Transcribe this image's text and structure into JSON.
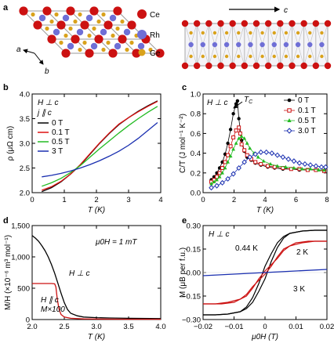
{
  "panel_labels": {
    "a": "a",
    "b": "b",
    "c": "c",
    "d": "d",
    "e": "e"
  },
  "panel_a": {
    "atoms": [
      {
        "name": "Ce",
        "color": "#cc1111"
      },
      {
        "name": "Rh",
        "color": "#6f6fd6"
      },
      {
        "name": "Ge",
        "color": "#d9a21b"
      }
    ],
    "axis_a": "a",
    "axis_b": "b",
    "axis_c": "c"
  },
  "chart_data": [
    {
      "panel": "b",
      "type": "line",
      "xlabel": "T (K)",
      "ylabel": "ρ (μΩ cm)",
      "xlim": [
        0,
        4
      ],
      "ylim": [
        2.0,
        4.0
      ],
      "xticks": [
        "0",
        "1",
        "2",
        "3",
        "4"
      ],
      "yticks": [
        "2.0",
        "2.5",
        "3.0",
        "3.5",
        "4.0"
      ],
      "annotations": [
        "H ⊥ c",
        "j ∥ c"
      ],
      "series": [
        {
          "name": "0 T",
          "color": "#000000",
          "x": [
            0.3,
            0.6,
            0.9,
            1.2,
            1.5,
            1.8,
            2.1,
            2.4,
            2.7,
            3.0,
            3.3,
            3.6,
            3.9
          ],
          "y": [
            2.02,
            2.1,
            2.22,
            2.38,
            2.56,
            2.78,
            3.0,
            3.2,
            3.38,
            3.52,
            3.65,
            3.76,
            3.86
          ]
        },
        {
          "name": "0.1 T",
          "color": "#dd1111",
          "x": [
            0.3,
            0.6,
            0.9,
            1.2,
            1.5,
            1.8,
            2.1,
            2.4,
            2.7,
            3.0,
            3.3,
            3.6,
            3.9
          ],
          "y": [
            2.05,
            2.12,
            2.23,
            2.38,
            2.57,
            2.79,
            3.01,
            3.21,
            3.39,
            3.52,
            3.64,
            3.75,
            3.85
          ]
        },
        {
          "name": "0.5 T",
          "color": "#22bb22",
          "x": [
            0.3,
            0.6,
            0.9,
            1.2,
            1.5,
            1.8,
            2.1,
            2.4,
            2.7,
            3.0,
            3.3,
            3.6,
            3.9
          ],
          "y": [
            2.13,
            2.2,
            2.29,
            2.41,
            2.55,
            2.72,
            2.89,
            3.05,
            3.21,
            3.36,
            3.5,
            3.63,
            3.75
          ]
        },
        {
          "name": "3 T",
          "color": "#1a2fb0",
          "x": [
            0.3,
            0.6,
            0.9,
            1.2,
            1.5,
            1.8,
            2.1,
            2.4,
            2.7,
            3.0,
            3.3,
            3.6,
            3.9
          ],
          "y": [
            2.32,
            2.35,
            2.39,
            2.44,
            2.5,
            2.57,
            2.65,
            2.74,
            2.84,
            2.96,
            3.1,
            3.26,
            3.42
          ]
        }
      ]
    },
    {
      "panel": "c",
      "type": "scatter",
      "xlabel": "T (K)",
      "ylabel": "C/T (J mol⁻¹ K⁻²)",
      "xlim": [
        0,
        9
      ],
      "ylim": [
        0,
        1.0
      ],
      "xticks": [
        "0",
        "2",
        "4",
        "6",
        "8"
      ],
      "yticks": [
        "0.0",
        "0.2",
        "0.4",
        "0.6",
        "0.8",
        "1.0"
      ],
      "annotations": [
        "H ⊥ c",
        "T_C"
      ],
      "series": [
        {
          "name": "0 T",
          "color": "#000000",
          "marker": "filled-circle",
          "x": [
            0.6,
            0.8,
            1.0,
            1.2,
            1.4,
            1.6,
            1.8,
            2.0,
            2.2,
            2.4,
            2.5,
            2.6,
            2.8,
            3.0,
            3.2,
            3.5,
            3.8,
            4.2,
            4.7,
            5.2,
            5.8,
            6.4,
            7.0,
            7.6,
            8.2,
            8.8
          ],
          "y": [
            0.13,
            0.16,
            0.2,
            0.25,
            0.31,
            0.39,
            0.5,
            0.64,
            0.8,
            0.9,
            0.93,
            0.75,
            0.53,
            0.42,
            0.36,
            0.33,
            0.3,
            0.28,
            0.26,
            0.25,
            0.24,
            0.24,
            0.23,
            0.23,
            0.23,
            0.22
          ]
        },
        {
          "name": "0.1 T",
          "color": "#cc1111",
          "marker": "open-square",
          "x": [
            0.6,
            0.8,
            1.0,
            1.2,
            1.4,
            1.6,
            1.8,
            2.0,
            2.2,
            2.4,
            2.6,
            2.7,
            2.8,
            3.0,
            3.2,
            3.5,
            3.8,
            4.2,
            4.7,
            5.2,
            5.8,
            6.4,
            7.0,
            7.6,
            8.2,
            8.8
          ],
          "y": [
            0.11,
            0.13,
            0.16,
            0.2,
            0.25,
            0.31,
            0.38,
            0.47,
            0.56,
            0.63,
            0.66,
            0.6,
            0.49,
            0.43,
            0.38,
            0.34,
            0.31,
            0.29,
            0.27,
            0.26,
            0.25,
            0.24,
            0.24,
            0.23,
            0.23,
            0.22
          ]
        },
        {
          "name": "0.5 T",
          "color": "#22bb22",
          "marker": "filled-triangle",
          "x": [
            0.6,
            0.8,
            1.0,
            1.2,
            1.4,
            1.6,
            1.8,
            2.0,
            2.2,
            2.4,
            2.6,
            2.8,
            3.0,
            3.2,
            3.4,
            3.7,
            4.0,
            4.4,
            4.9,
            5.4,
            6.0,
            6.6,
            7.2,
            7.8,
            8.4,
            8.8
          ],
          "y": [
            0.09,
            0.11,
            0.13,
            0.16,
            0.2,
            0.25,
            0.31,
            0.37,
            0.44,
            0.5,
            0.55,
            0.57,
            0.55,
            0.5,
            0.45,
            0.4,
            0.36,
            0.32,
            0.29,
            0.27,
            0.26,
            0.25,
            0.24,
            0.24,
            0.23,
            0.23
          ]
        },
        {
          "name": "3.0 T",
          "color": "#1a2fb0",
          "marker": "open-diamond",
          "x": [
            0.6,
            1.0,
            1.4,
            1.8,
            2.2,
            2.6,
            3.0,
            3.4,
            3.8,
            4.2,
            4.6,
            5.0,
            5.4,
            5.8,
            6.2,
            6.6,
            7.0,
            7.4,
            7.8,
            8.2,
            8.6,
            8.9
          ],
          "y": [
            0.05,
            0.07,
            0.1,
            0.14,
            0.19,
            0.25,
            0.31,
            0.36,
            0.39,
            0.41,
            0.41,
            0.4,
            0.38,
            0.36,
            0.34,
            0.32,
            0.3,
            0.29,
            0.28,
            0.27,
            0.26,
            0.26
          ]
        }
      ]
    },
    {
      "panel": "d",
      "type": "line",
      "xlabel": "T (K)",
      "ylabel": "M/H (×10⁻⁶ m³ mol⁻¹)",
      "xlim": [
        2.0,
        4.0
      ],
      "ylim": [
        0,
        1500
      ],
      "xticks": [
        "2.0",
        "2.5",
        "3.0",
        "3.5",
        "4.0"
      ],
      "yticks": [
        "0",
        "500",
        "1,000",
        "1,500"
      ],
      "annotations": [
        "μ0H = 1 mT",
        "H ⊥ c",
        "H ∥ c",
        "M×100"
      ],
      "series": [
        {
          "name": "H ⊥ c",
          "color": "#000000",
          "x": [
            2.0,
            2.05,
            2.1,
            2.15,
            2.2,
            2.25,
            2.3,
            2.35,
            2.4,
            2.45,
            2.5,
            2.55,
            2.6,
            2.7,
            2.8,
            3.0,
            3.2,
            3.5,
            4.0
          ],
          "y": [
            1340,
            1300,
            1250,
            1180,
            1100,
            1000,
            880,
            740,
            580,
            420,
            270,
            160,
            100,
            60,
            40,
            30,
            25,
            20,
            15
          ]
        },
        {
          "name": "H ∥ c (M×100)",
          "color": "#cc1111",
          "x": [
            2.0,
            2.1,
            2.2,
            2.3,
            2.35,
            2.37,
            2.39,
            2.42,
            2.45,
            2.5,
            2.6,
            2.8,
            3.0,
            3.5,
            4.0
          ],
          "y": [
            575,
            575,
            575,
            575,
            570,
            520,
            330,
            160,
            80,
            40,
            20,
            10,
            8,
            5,
            5
          ]
        }
      ]
    },
    {
      "panel": "e",
      "type": "line",
      "xlabel": "μ0H (T)",
      "ylabel": "M (μB per f.u.)",
      "xlim": [
        -0.02,
        0.02
      ],
      "ylim": [
        -0.3,
        0.3
      ],
      "xticks": [
        "−0.02",
        "−0.01",
        "0",
        "0.01",
        "0.02"
      ],
      "yticks": [
        "−0.30",
        "−0.15",
        "0.00",
        "0.15",
        "0.30"
      ],
      "annotations": [
        "H ⊥ c",
        "0.44 K",
        "2 K",
        "3 K"
      ],
      "series": [
        {
          "name": "0.44 K",
          "color": "#000000",
          "loop": true,
          "x_up": [
            -0.02,
            -0.016,
            -0.012,
            -0.008,
            -0.006,
            -0.004,
            -0.002,
            0.0,
            0.002,
            0.004,
            0.006,
            0.008,
            0.012,
            0.016,
            0.02
          ],
          "y_up": [
            -0.27,
            -0.27,
            -0.265,
            -0.25,
            -0.23,
            -0.19,
            -0.12,
            -0.04,
            0.07,
            0.16,
            0.22,
            0.25,
            0.265,
            0.27,
            0.27
          ],
          "x_down": [
            0.02,
            0.016,
            0.012,
            0.008,
            0.006,
            0.004,
            0.002,
            0.0,
            -0.002,
            -0.004,
            -0.006,
            -0.008,
            -0.012,
            -0.016,
            -0.02
          ],
          "y_down": [
            0.27,
            0.27,
            0.265,
            0.25,
            0.23,
            0.19,
            0.12,
            0.04,
            -0.07,
            -0.16,
            -0.22,
            -0.25,
            -0.265,
            -0.27,
            -0.27
          ]
        },
        {
          "name": "2 K",
          "color": "#cc1111",
          "loop": true,
          "x_up": [
            -0.02,
            -0.016,
            -0.012,
            -0.008,
            -0.006,
            -0.004,
            -0.002,
            0.0,
            0.002,
            0.004,
            0.006,
            0.01,
            0.014,
            0.02
          ],
          "y_up": [
            -0.2,
            -0.2,
            -0.19,
            -0.17,
            -0.14,
            -0.09,
            -0.05,
            -0.01,
            0.04,
            0.1,
            0.15,
            0.19,
            0.2,
            0.2
          ],
          "x_down": [
            0.02,
            0.016,
            0.012,
            0.008,
            0.006,
            0.004,
            0.002,
            0.0,
            -0.002,
            -0.004,
            -0.006,
            -0.01,
            -0.014,
            -0.02
          ],
          "y_down": [
            0.2,
            0.2,
            0.19,
            0.17,
            0.14,
            0.09,
            0.05,
            0.01,
            -0.04,
            -0.1,
            -0.15,
            -0.19,
            -0.2,
            -0.2
          ]
        },
        {
          "name": "3 K",
          "color": "#1a2fb0",
          "x": [
            -0.02,
            0.02
          ],
          "y": [
            -0.02,
            0.02
          ]
        }
      ]
    }
  ]
}
